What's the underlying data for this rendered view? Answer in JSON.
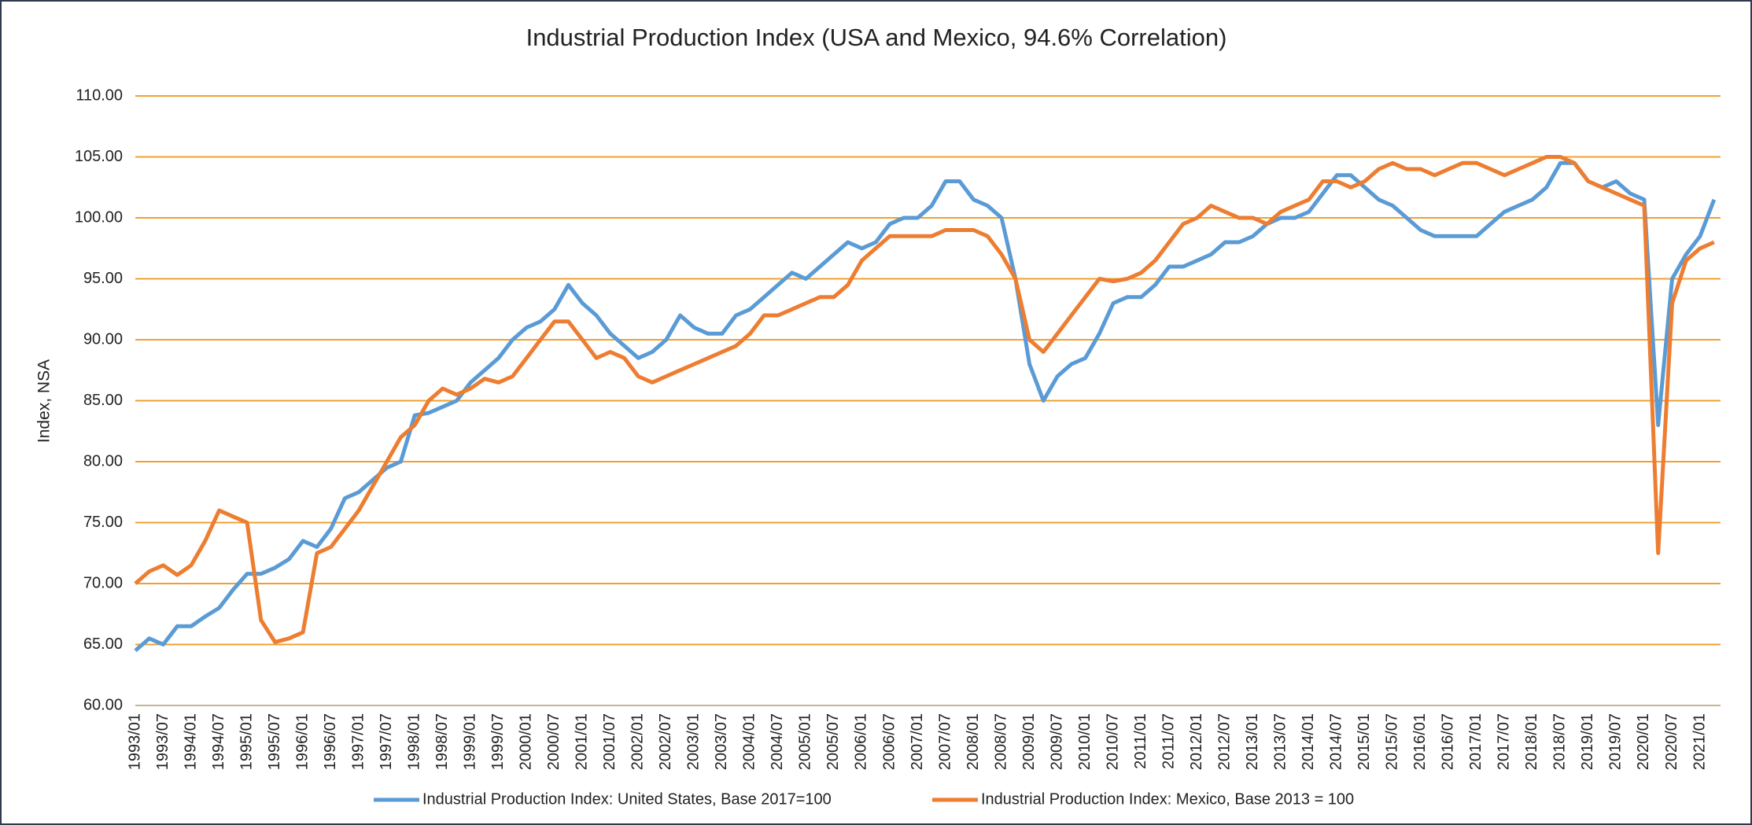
{
  "chart_data": {
    "type": "line",
    "title": "Industrial Production Index (USA and Mexico, 94.6% Correlation)",
    "y_label": "Index, NSA",
    "categories": [
      "1993/01",
      null,
      "1993/07",
      null,
      "1994/01",
      null,
      "1994/07",
      null,
      "1995/01",
      null,
      "1995/07",
      null,
      "1996/01",
      null,
      "1996/07",
      null,
      "1997/01",
      null,
      "1997/07",
      null,
      "1998/01",
      null,
      "1998/07",
      null,
      "1999/01",
      null,
      "1999/07",
      null,
      "2000/01",
      null,
      "2000/07",
      null,
      "2001/01",
      null,
      "2001/07",
      null,
      "2002/01",
      null,
      "2002/07",
      null,
      "2003/01",
      null,
      "2003/07",
      null,
      "2004/01",
      null,
      "2004/07",
      null,
      "2005/01",
      null,
      "2005/07",
      null,
      "2006/01",
      null,
      "2006/07",
      null,
      "2007/01",
      null,
      "2007/07",
      null,
      "2008/01",
      null,
      "2008/07",
      null,
      "2009/01",
      null,
      "2009/07",
      null,
      "2010/01",
      null,
      "2010/07",
      null,
      "2011/01",
      null,
      "2011/07",
      null,
      "2012/01",
      null,
      "2012/07",
      null,
      "2013/01",
      null,
      "2013/07",
      null,
      "2014/01",
      null,
      "2014/07",
      null,
      "2015/01",
      null,
      "2015/07",
      null,
      "2016/01",
      null,
      "2016/07",
      null,
      "2017/01",
      null,
      "2017/07",
      null,
      "2018/01",
      null,
      "2018/07",
      null,
      "2019/01",
      null,
      "2019/07",
      null,
      "2020/01",
      null,
      "2020/07",
      null,
      "2021/01",
      null
    ],
    "series": [
      {
        "name": "Industrial Production Index: United States, Base 2017=100",
        "color": "#5b9bd5",
        "values": [
          64.5,
          65.5,
          65,
          66.5,
          66.5,
          67.3,
          68,
          69.5,
          70.8,
          70.8,
          71.3,
          72,
          73.5,
          73,
          74.5,
          77,
          77.5,
          78.5,
          79.5,
          80,
          83.8,
          84,
          84.5,
          85,
          86.5,
          87.5,
          88.5,
          90,
          91,
          91.5,
          92.5,
          94.5,
          93,
          92,
          90.5,
          89.5,
          88.5,
          89,
          90,
          92,
          91,
          90.5,
          90.5,
          92,
          92.5,
          93.5,
          94.5,
          95.5,
          95,
          96,
          97,
          98,
          97.5,
          98,
          99.5,
          100,
          100,
          101,
          103,
          103,
          101.5,
          101,
          100,
          95,
          88,
          85,
          87,
          88,
          88.5,
          90.5,
          93,
          93.5,
          93.5,
          94.5,
          96,
          96,
          96.5,
          97,
          98,
          98,
          98.5,
          99.5,
          100,
          100,
          100.5,
          102,
          103.5,
          103.5,
          102.5,
          101.5,
          101,
          100,
          99,
          98.5,
          98.5,
          98.5,
          98.5,
          99.5,
          100.5,
          101,
          101.5,
          102.5,
          104.5,
          104.5,
          103,
          102.5,
          103,
          102,
          101.5,
          83,
          95,
          97,
          98.5,
          101.5
        ]
      },
      {
        "name": "Industrial Production Index: Mexico, Base 2013 = 100",
        "color": "#ed7d31",
        "values": [
          70,
          71,
          71.5,
          70.7,
          71.5,
          73.5,
          76,
          75.5,
          75,
          67,
          65.2,
          65.5,
          66,
          72.5,
          73,
          74.5,
          76,
          78,
          80,
          82,
          83,
          85,
          86,
          85.5,
          86,
          86.8,
          86.5,
          87,
          88.5,
          90,
          91.5,
          91.5,
          90,
          88.5,
          89,
          88.5,
          87,
          86.5,
          87,
          87.5,
          88,
          88.5,
          89,
          89.5,
          90.5,
          92,
          92,
          92.5,
          93,
          93.5,
          93.5,
          94.5,
          96.5,
          97.5,
          98.5,
          98.5,
          98.5,
          98.5,
          99,
          99,
          99,
          98.5,
          97,
          95,
          90,
          89,
          90.5,
          92,
          93.5,
          95,
          94.8,
          95,
          95.5,
          96.5,
          98,
          99.5,
          100,
          101,
          100.5,
          100,
          100,
          99.5,
          100.5,
          101,
          101.5,
          103,
          103,
          102.5,
          103,
          104,
          104.5,
          104,
          104,
          103.5,
          104,
          104.5,
          104.5,
          104,
          103.5,
          104,
          104.5,
          105,
          105,
          104.5,
          103,
          102.5,
          102,
          101.5,
          101,
          72.5,
          93,
          96.5,
          97.5,
          98
        ]
      }
    ],
    "ylim": [
      60,
      110
    ],
    "yticks": [
      {
        "value": 60,
        "label": "60.00"
      },
      {
        "value": 65,
        "label": "65.00"
      },
      {
        "value": 70,
        "label": "70.00"
      },
      {
        "value": 75,
        "label": "75.00"
      },
      {
        "value": 80,
        "label": "80.00"
      },
      {
        "value": 85,
        "label": "85.00"
      },
      {
        "value": 90,
        "label": "90.00"
      },
      {
        "value": 95,
        "label": "95.00"
      },
      {
        "value": 100,
        "label": "100.00"
      },
      {
        "value": 105,
        "label": "105.00"
      },
      {
        "value": 110,
        "label": "110.00"
      }
    ],
    "grid": true,
    "grid_color": "#f0a030",
    "legend": "bottom"
  }
}
